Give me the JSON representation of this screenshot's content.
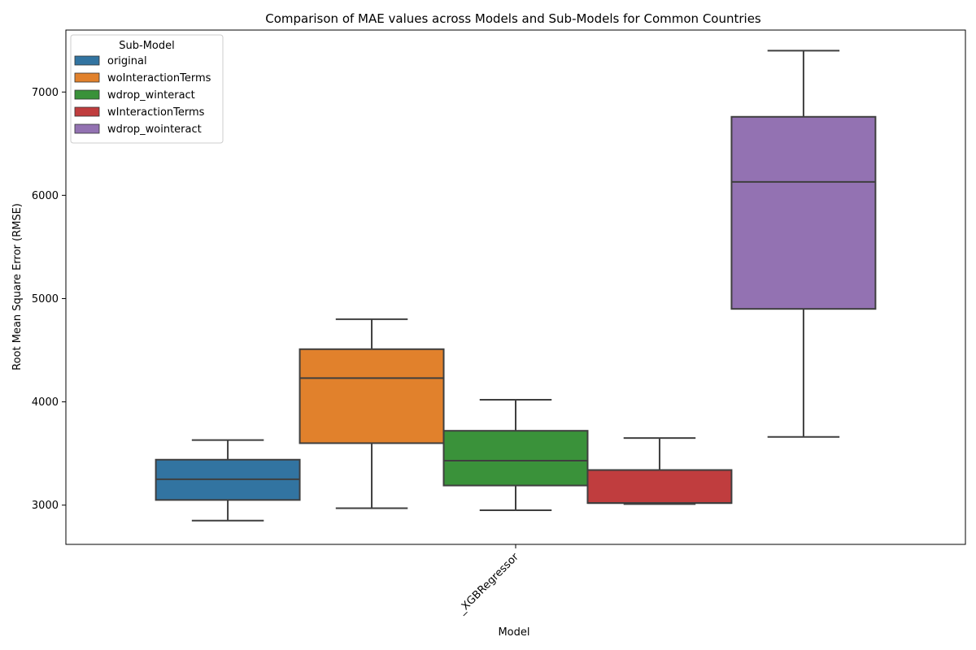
{
  "chart_data": {
    "type": "box",
    "title": "Comparison of MAE values across Models and Sub-Models for Common Countries",
    "xlabel": "Model",
    "ylabel": "Root Mean Square Error (RMSE)",
    "categories": [
      "_XGBRegressor"
    ],
    "ylim": [
      2620,
      7600
    ],
    "yticks": [
      3000,
      4000,
      5000,
      6000,
      7000
    ],
    "legend": {
      "title": "Sub-Model",
      "position": "top-left"
    },
    "series": [
      {
        "name": "original",
        "color": "#3274a1",
        "whisker_low": 2850,
        "q1": 3050,
        "median": 3250,
        "q3": 3440,
        "whisker_high": 3630
      },
      {
        "name": "woInteractionTerms",
        "color": "#e1812c",
        "whisker_low": 2970,
        "q1": 3600,
        "median": 4230,
        "q3": 4510,
        "whisker_high": 4800
      },
      {
        "name": "wdrop_winteract",
        "color": "#3a923a",
        "whisker_low": 2950,
        "q1": 3190,
        "median": 3430,
        "q3": 3720,
        "whisker_high": 4020
      },
      {
        "name": "wInteractionTerms",
        "color": "#c03d3e",
        "whisker_low": 3010,
        "q1": 3020,
        "median": 3020,
        "q3": 3340,
        "whisker_high": 3650
      },
      {
        "name": "wdrop_wointeract",
        "color": "#9372b2",
        "whisker_low": 3660,
        "q1": 4900,
        "median": 6130,
        "q3": 6760,
        "whisker_high": 7400
      }
    ]
  }
}
